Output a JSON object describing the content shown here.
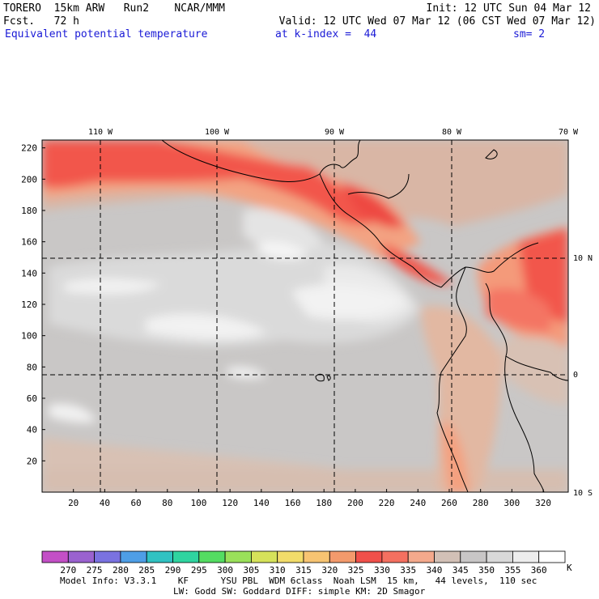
{
  "header": {
    "model": "TORERO",
    "resolution": "15km ARW",
    "run": "Run2",
    "org": "NCAR/MMM",
    "init": "Init: 12 UTC Sun 04 Mar 12",
    "fcst_label": "Fcst.",
    "fcst_value": "72 h",
    "valid": "Valid: 12 UTC Wed 07 Mar 12 (06 CST Wed 07 Mar 12)",
    "field": "Equivalent potential temperature",
    "level": "at k-index =  44",
    "smooth": "sm= 2"
  },
  "map": {
    "lon_labels": [
      "110 W",
      "100 W",
      "90 W",
      "80 W",
      "70 W"
    ],
    "lat_labels": [
      "10 N",
      "0",
      "10 S"
    ],
    "y_ticks": [
      "220",
      "200",
      "180",
      "160",
      "140",
      "120",
      "100",
      "80",
      "60",
      "40",
      "20"
    ],
    "x_ticks": [
      "20",
      "40",
      "60",
      "80",
      "100",
      "120",
      "140",
      "160",
      "180",
      "200",
      "220",
      "240",
      "260",
      "280",
      "300",
      "320"
    ]
  },
  "colorbar": {
    "unit": "K",
    "labels": [
      "270",
      "275",
      "280",
      "285",
      "290",
      "295",
      "300",
      "305",
      "310",
      "315",
      "320",
      "325",
      "330",
      "335",
      "340",
      "345",
      "350",
      "355",
      "360"
    ],
    "colors": [
      "#c34fc6",
      "#9a62cf",
      "#7a72e0",
      "#4e9ee6",
      "#30c2c2",
      "#2fd4a0",
      "#54dc62",
      "#9ae05a",
      "#d6e25a",
      "#f2dc6a",
      "#f7c472",
      "#f39a6c",
      "#f0504a",
      "#f47060",
      "#f4a98c",
      "#d2c0b6",
      "#c8c6c6",
      "#d8d8d8",
      "#ededed",
      "#ffffff"
    ]
  },
  "footer": {
    "line1": "Model Info: V3.3.1    KF      YSU PBL  WDM 6class  Noah LSM  15 km,   44 levels,  110 sec",
    "line2": "LW: Godd SW: Goddard DIFF: simple KM: 2D Smagor"
  }
}
